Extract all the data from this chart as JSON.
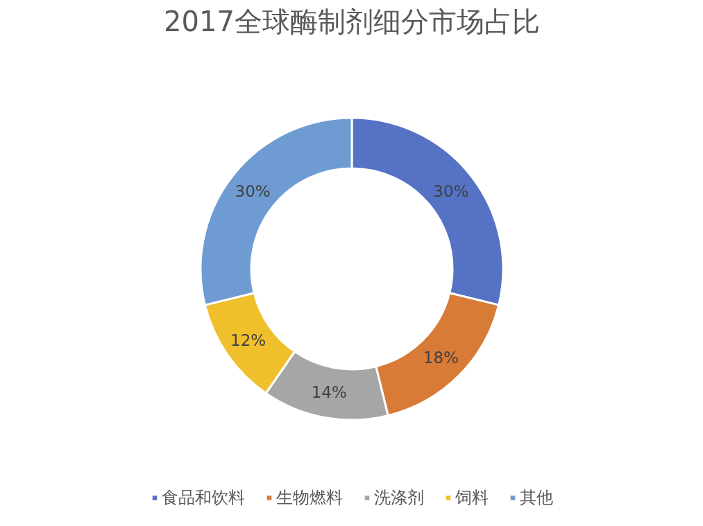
{
  "chart_data": {
    "type": "donut",
    "title": "2017全球酶制剂细分市场占比",
    "categories": [
      "食品和饮料",
      "生物燃料",
      "洗涤剂",
      "饲料",
      "其他"
    ],
    "values": [
      30,
      18,
      14,
      12,
      30
    ],
    "colors": [
      "#5572c4",
      "#d77b37",
      "#a6a6a6",
      "#f0bf2c",
      "#6f9bd3"
    ],
    "value_labels": [
      "30%",
      "18%",
      "14%",
      "12%",
      "30%"
    ],
    "legend": "bottom"
  }
}
